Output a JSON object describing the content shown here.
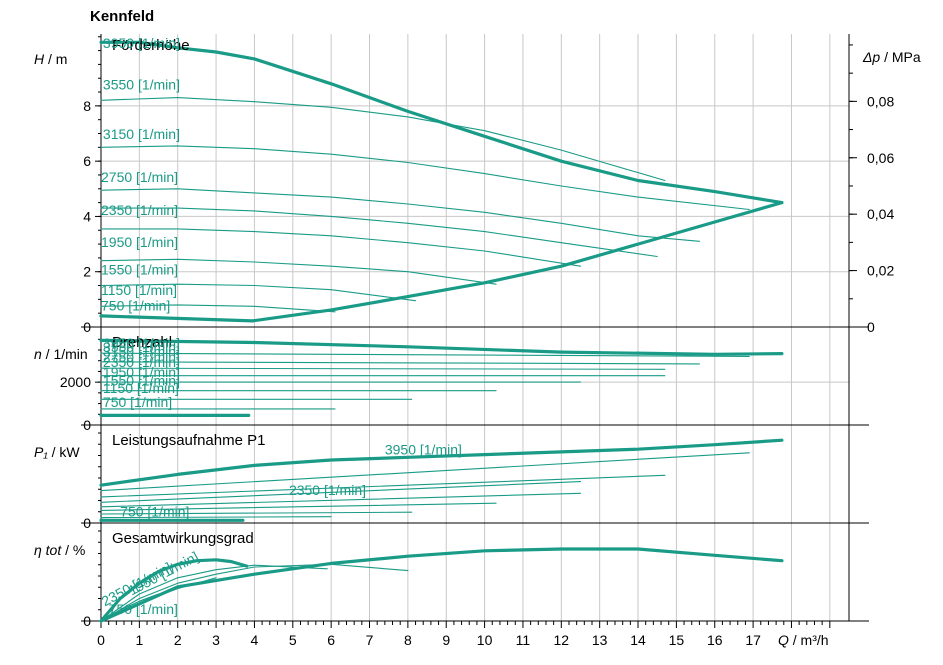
{
  "title": "Kennfeld",
  "colors": {
    "curve": "#1a9b87",
    "grid": "#c8c8c8",
    "axis": "#000000",
    "text": "#000000"
  },
  "chart_data": {
    "type": "line",
    "title": "Kennfeld",
    "x": {
      "ticks": [
        "0",
        "1",
        "2",
        "3",
        "4",
        "5",
        "6",
        "7",
        "8",
        "9",
        "10",
        "11",
        "12",
        "13",
        "14",
        "15",
        "16",
        "17"
      ],
      "label_var": "Q",
      "label_unit": "/ m³/h",
      "range": [
        0,
        19.5
      ]
    },
    "panels": [
      {
        "name": "Förderhöhe",
        "ylabel_var": "H",
        "ylabel_unit": "/ m",
        "yticks": [
          "0",
          "2",
          "4",
          "6",
          "8"
        ],
        "ylim": [
          0,
          10.6
        ],
        "y2label_var": "Δp",
        "y2label_unit": "/ MPa",
        "y2ticks": [
          "0",
          "0,02",
          "0,04",
          "0,06",
          "0,08"
        ],
        "series": [
          {
            "name": "3950 [1/min]",
            "bold": true,
            "x": [
              0,
              1,
              2,
              3,
              4,
              6,
              8,
              10,
              12,
              14,
              16,
              17.75
            ],
            "y": [
              10.3,
              10.3,
              10.1,
              9.95,
              9.7,
              8.8,
              7.8,
              6.9,
              6.0,
              5.3,
              4.9,
              4.5
            ]
          },
          {
            "name": "3550 [1/min]",
            "x": [
              0,
              2,
              4,
              6,
              8,
              10,
              12,
              14.7
            ],
            "y": [
              8.2,
              8.3,
              8.15,
              7.95,
              7.6,
              7.1,
              6.4,
              5.3
            ]
          },
          {
            "name": "3150 [1/min]",
            "x": [
              0,
              2,
              4,
              6,
              8,
              10,
              12,
              14,
              16.9
            ],
            "y": [
              6.5,
              6.55,
              6.45,
              6.25,
              5.95,
              5.55,
              5.1,
              4.7,
              4.25
            ]
          },
          {
            "name": "2750 [1/min]",
            "x": [
              0,
              2,
              4,
              6,
              8,
              10,
              12,
              14,
              15.6
            ],
            "y": [
              4.95,
              5.0,
              4.85,
              4.7,
              4.45,
              4.15,
              3.75,
              3.3,
              3.1
            ]
          },
          {
            "name": "2350 [1/min]",
            "x": [
              0,
              2,
              4,
              6,
              8,
              10,
              12,
              14.5
            ],
            "y": [
              4.3,
              4.3,
              4.2,
              4.0,
              3.75,
              3.45,
              3.05,
              2.55
            ]
          },
          {
            "name": "1950 [1/min]",
            "x": [
              0,
              2,
              4,
              6,
              8,
              10,
              12.5
            ],
            "y": [
              3.55,
              3.55,
              3.45,
              3.3,
              3.05,
              2.75,
              2.2
            ]
          },
          {
            "name": "1550 [1/min]",
            "x": [
              0,
              2,
              4,
              6,
              8,
              10.3
            ],
            "y": [
              2.4,
              2.45,
              2.35,
              2.2,
              2.0,
              1.55
            ]
          },
          {
            "name": "1150 [1/min]",
            "x": [
              0,
              2,
              4,
              6,
              8.2
            ],
            "y": [
              1.5,
              1.55,
              1.5,
              1.35,
              0.95
            ]
          },
          {
            "name": "750 [1/min]",
            "x": [
              0,
              2,
              4,
              6.1
            ],
            "y": [
              0.75,
              0.8,
              0.75,
              0.55
            ]
          },
          {
            "name": "",
            "bold": true,
            "x": [
              0,
              3.95
            ],
            "y": [
              0.4,
              0.22
            ]
          },
          {
            "name": "",
            "bold": true,
            "x": [
              3.95,
              6,
              8,
              10,
              12,
              14,
              16,
              17.75
            ],
            "y": [
              0.22,
              0.62,
              1.1,
              1.6,
              2.2,
              3.0,
              3.8,
              4.5
            ]
          }
        ]
      },
      {
        "name": "Drehzahl",
        "ylabel_var": "n",
        "ylabel_unit": "/ 1/min",
        "yticks": [
          "0",
          "2000"
        ],
        "ylim": [
          0,
          4200
        ],
        "series": [
          {
            "name": "3950 [1/min]",
            "bold": true,
            "x": [
              0,
              4,
              8,
              12,
              16,
              17.75
            ],
            "y": [
              3950,
              3850,
              3650,
              3400,
              3300,
              3330
            ]
          },
          {
            "name": "3550 [1/min]",
            "x": [
              0,
              16.9
            ],
            "y": [
              3350,
              3200
            ]
          },
          {
            "name": "3150 [1/min]",
            "x": [
              0,
              15.6
            ],
            "y": [
              2950,
              2850
            ]
          },
          {
            "name": "2750 [1/min]",
            "x": [
              0,
              14.7
            ],
            "y": [
              2650,
              2600
            ]
          },
          {
            "name": "2350 [1/min]",
            "x": [
              0,
              14.7
            ],
            "y": [
              2300,
              2300
            ]
          },
          {
            "name": "1950 [1/min]",
            "x": [
              0,
              12.5
            ],
            "y": [
              2000,
              2000
            ]
          },
          {
            "name": "1550 [1/min]",
            "x": [
              0,
              10.3
            ],
            "y": [
              1600,
              1600
            ]
          },
          {
            "name": "1150 [1/min]",
            "x": [
              0,
              8.1
            ],
            "y": [
              1200,
              1200
            ]
          },
          {
            "name": "750 [1/min]",
            "x": [
              0,
              6.1
            ],
            "y": [
              750,
              750
            ]
          },
          {
            "name": "",
            "bold": true,
            "x": [
              0,
              3.85
            ],
            "y": [
              450,
              450
            ]
          }
        ]
      },
      {
        "name": "Leistungsaufnahme P1",
        "ylabel_var": "P₁",
        "ylabel_unit": "/ kW",
        "yticks": [
          "0"
        ],
        "ylim": [
          0,
          1
        ],
        "series": [
          {
            "name": "3950 [1/min]",
            "bold": true,
            "x": [
              0,
              2,
              4,
              6,
              8,
              10,
              12,
              14,
              16,
              17.75
            ],
            "y": [
              0.42,
              0.54,
              0.64,
              0.7,
              0.73,
              0.76,
              0.79,
              0.82,
              0.87,
              0.92
            ]
          },
          {
            "name": "3550 [1/min]",
            "x": [
              0,
              16.9
            ],
            "y": [
              0.36,
              0.78
            ]
          },
          {
            "name": "3150 [1/min]",
            "x": [
              0,
              14.7
            ],
            "y": [
              0.29,
              0.53
            ]
          },
          {
            "name": "2750 [1/min]",
            "x": [
              0,
              12.5
            ],
            "y": [
              0.23,
              0.46
            ]
          },
          {
            "name": "2350 [1/min]",
            "x": [
              0,
              12.5
            ],
            "y": [
              0.18,
              0.33
            ]
          },
          {
            "name": "1950 [1/min]",
            "x": [
              0,
              10.3
            ],
            "y": [
              0.14,
              0.22
            ]
          },
          {
            "name": "1550 [1/min]",
            "x": [
              0,
              8.1
            ],
            "y": [
              0.1,
              0.12
            ]
          },
          {
            "name": "1150 [1/min]",
            "x": [
              0,
              6.0
            ],
            "y": [
              0.06,
              0.07
            ]
          },
          {
            "name": "750 [1/min]",
            "bold": true,
            "x": [
              0,
              3.7
            ],
            "y": [
              0.03,
              0.03
            ]
          }
        ]
      },
      {
        "name": "Gesamtwirkungsgrad",
        "ylabel_var": "η tot",
        "ylabel_unit": "/ %",
        "yticks": [
          "0"
        ],
        "ylim": [
          0,
          1
        ],
        "series": [
          {
            "name": "3950 [1/min]",
            "bold": true,
            "x": [
              0,
              2,
              4,
              6,
              8,
              10,
              12,
              14,
              16,
              17.75
            ],
            "y": [
              0.0,
              0.38,
              0.52,
              0.64,
              0.72,
              0.78,
              0.8,
              0.8,
              0.73,
              0.67
            ]
          },
          {
            "name": "2350 [1/min]",
            "x": [
              0,
              1,
              2,
              3,
              4,
              6,
              8.0
            ],
            "y": [
              0.0,
              0.25,
              0.42,
              0.52,
              0.6,
              0.63,
              0.56
            ]
          },
          {
            "name": "1950 [1/min]",
            "x": [
              0,
              1,
              2,
              3,
              4,
              5.9
            ],
            "y": [
              0.0,
              0.3,
              0.48,
              0.57,
              0.62,
              0.58
            ]
          },
          {
            "name": "",
            "bold": true,
            "x": [
              0,
              0.5,
              1,
              1.5,
              2,
              2.5,
              3,
              3.4,
              3.8
            ],
            "y": [
              0.0,
              0.25,
              0.42,
              0.55,
              0.63,
              0.67,
              0.68,
              0.66,
              0.61
            ]
          },
          {
            "name": "1150 [1/min]",
            "x": [
              0,
              1,
              2,
              3
            ],
            "y": [
              0.0,
              0.2,
              0.36,
              0.48
            ]
          },
          {
            "name": "750 [1/min]",
            "x": [
              0,
              0.5,
              1,
              1.5
            ],
            "y": [
              0.0,
              0.12,
              0.22,
              0.3
            ]
          }
        ]
      }
    ],
    "annotations": [
      {
        "panel": 0,
        "text": "3950 [1/min]",
        "x": 0.05,
        "y": 10.1
      },
      {
        "panel": 0,
        "text": "3550 [1/min]",
        "x": 0.05,
        "y": 8.6
      },
      {
        "panel": 0,
        "text": "3150 [1/min]",
        "x": 0.05,
        "y": 6.8
      },
      {
        "panel": 0,
        "text": "2750 [1/min]",
        "x": 0.0,
        "y": 5.25
      },
      {
        "panel": 0,
        "text": "2350 [1/min]",
        "x": 0.0,
        "y": 4.05
      },
      {
        "panel": 0,
        "text": "1950 [1/min]",
        "x": 0.0,
        "y": 2.9
      },
      {
        "panel": 0,
        "text": "1550 [1/min]",
        "x": 0.0,
        "y": 1.9
      },
      {
        "panel": 0,
        "text": "1150 [1/min]",
        "x": 0.0,
        "y": 1.15
      },
      {
        "panel": 0,
        "text": "750 [1/min]",
        "x": 0.0,
        "y": 0.6
      },
      {
        "panel": 1,
        "text": "3950 [1/min]",
        "x": 0.05,
        "y": 3600
      },
      {
        "panel": 1,
        "text": "3550 [1/min]",
        "x": 0.05,
        "y": 3400
      },
      {
        "panel": 1,
        "text": "3150 [1/min]",
        "x": 0.05,
        "y": 3200
      },
      {
        "panel": 1,
        "text": "2750 [1/min]",
        "x": 0.05,
        "y": 2950
      },
      {
        "panel": 1,
        "text": "2350 [1/min]",
        "x": 0.05,
        "y": 2700
      },
      {
        "panel": 1,
        "text": "1950 [1/min]",
        "x": 0.05,
        "y": 2250
      },
      {
        "panel": 1,
        "text": "1550 [1/min]",
        "x": 0.05,
        "y": 1850
      },
      {
        "panel": 1,
        "text": "1150 [1/min]",
        "x": 0.05,
        "y": 1500
      },
      {
        "panel": 1,
        "text": "750 [1/min]",
        "x": 0.05,
        "y": 850
      },
      {
        "panel": 2,
        "text": "3950 [1/min]",
        "x": 7.4,
        "y": 0.76
      },
      {
        "panel": 2,
        "text": "2350 [1/min]",
        "x": 4.9,
        "y": 0.31
      },
      {
        "panel": 2,
        "text": "750 [1/min]",
        "x": 0.5,
        "y": 0.07
      },
      {
        "panel": 3,
        "text": "1950 [1/min]",
        "x": 0.8,
        "y": 0.28,
        "rotate": -28
      },
      {
        "panel": 3,
        "text": "2350 [1/min]",
        "x": 0.1,
        "y": 0.16,
        "rotate": -28
      },
      {
        "panel": 3,
        "text": "750 [1/min]",
        "x": 0.2,
        "y": 0.08
      }
    ]
  }
}
